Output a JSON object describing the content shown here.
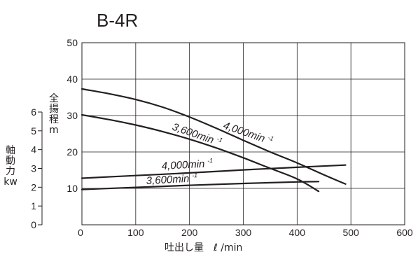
{
  "chart_data": {
    "type": "line",
    "title": "B-4R",
    "xlabel": "吐出し量　ℓ /min",
    "ylabel": [
      "全",
      "揚",
      "程",
      "m"
    ],
    "y2label": [
      "軸",
      "動",
      "力",
      "kw"
    ],
    "xlim": [
      0,
      600
    ],
    "ylim": [
      0,
      50
    ],
    "y2lim": [
      0,
      6
    ],
    "x_ticks": [
      0,
      100,
      200,
      300,
      400,
      500,
      600
    ],
    "y_ticks": [
      10,
      20,
      30,
      40,
      50
    ],
    "y2_ticks": [
      0,
      1,
      2,
      3,
      4,
      5,
      6
    ],
    "grid": true,
    "series": [
      {
        "name": "4,000min -1",
        "label_main": "4,000min",
        "label_sup": "-1",
        "quantity": "head",
        "points": [
          [
            0,
            37.3
          ],
          [
            50,
            36.0
          ],
          [
            100,
            34.4
          ],
          [
            150,
            32.3
          ],
          [
            200,
            29.6
          ],
          [
            250,
            26.5
          ],
          [
            300,
            23.2
          ],
          [
            350,
            20.0
          ],
          [
            400,
            17.0
          ],
          [
            450,
            13.7
          ],
          [
            490,
            11.2
          ]
        ]
      },
      {
        "name": "3,600min -1",
        "label_main": "3,600min",
        "label_sup": "-1",
        "quantity": "head",
        "points": [
          [
            0,
            30.2
          ],
          [
            50,
            28.9
          ],
          [
            100,
            27.4
          ],
          [
            150,
            25.6
          ],
          [
            200,
            23.5
          ],
          [
            250,
            21.1
          ],
          [
            300,
            18.4
          ],
          [
            350,
            15.5
          ],
          [
            400,
            12.6
          ],
          [
            440,
            9.2
          ]
        ]
      },
      {
        "name": "4,000min -1",
        "label_main": "4,000min",
        "label_sup": "-1",
        "quantity": "power",
        "points": [
          [
            0,
            2.48
          ],
          [
            100,
            2.62
          ],
          [
            200,
            2.76
          ],
          [
            300,
            2.92
          ],
          [
            400,
            3.06
          ],
          [
            490,
            3.18
          ]
        ]
      },
      {
        "name": "3,600min -1",
        "label_main": "3,600min",
        "label_sup": "-1",
        "quantity": "power",
        "points": [
          [
            0,
            1.88
          ],
          [
            100,
            1.99
          ],
          [
            200,
            2.1
          ],
          [
            300,
            2.2
          ],
          [
            400,
            2.28
          ],
          [
            440,
            2.3
          ]
        ]
      }
    ]
  }
}
